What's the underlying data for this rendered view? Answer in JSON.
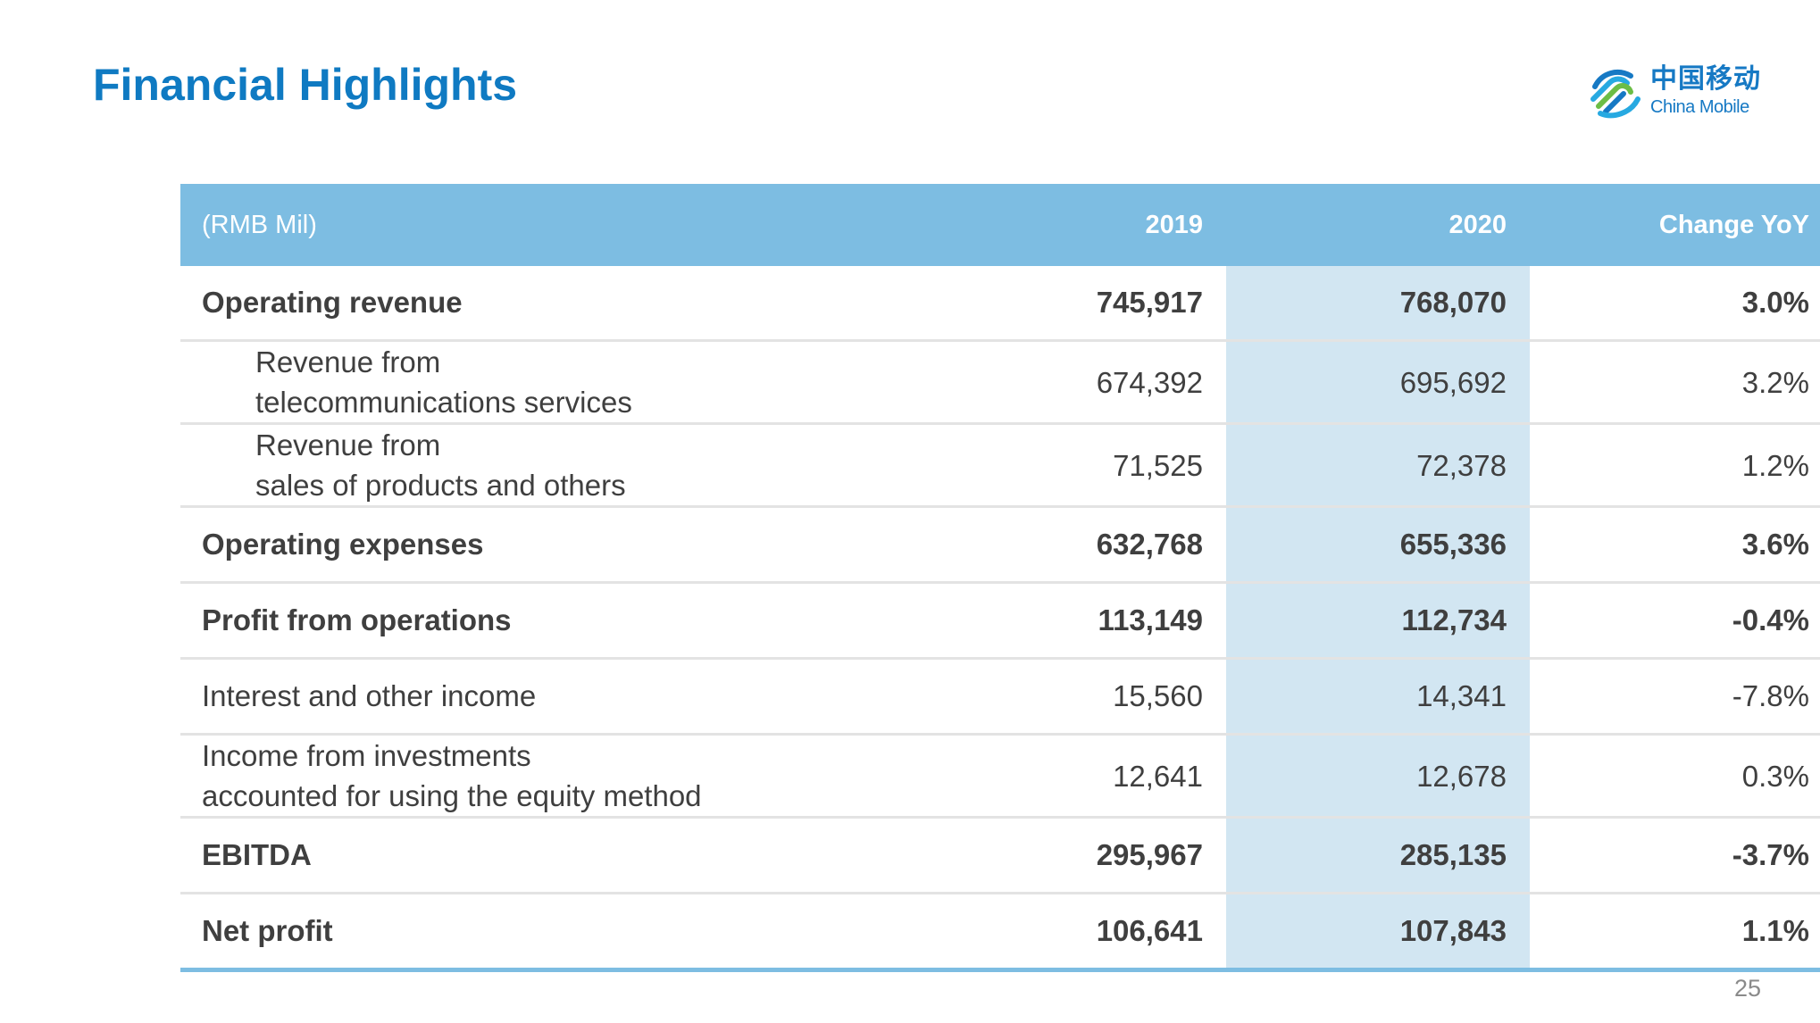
{
  "slide": {
    "title": "Financial Highlights",
    "page_number": "25"
  },
  "logo": {
    "icon": "china-mobile-logo-icon",
    "name_cn": "中国移动",
    "name_en": "China Mobile"
  },
  "table": {
    "header": {
      "unit": "(RMB Mil)",
      "col_2019": "2019",
      "col_2020": "2020",
      "col_change": "Change YoY"
    },
    "rows": [
      {
        "label": [
          "Operating revenue"
        ],
        "v2019": "745,917",
        "v2020": "768,070",
        "change": "3.0%"
      },
      {
        "label": [
          "Revenue from",
          "telecommunications services"
        ],
        "v2019": "674,392",
        "v2020": "695,692",
        "change": "3.2%"
      },
      {
        "label": [
          "Revenue from",
          "sales of products and others"
        ],
        "v2019": "71,525",
        "v2020": "72,378",
        "change": "1.2%"
      },
      {
        "label": [
          "Operating expenses"
        ],
        "v2019": "632,768",
        "v2020": "655,336",
        "change": "3.6%"
      },
      {
        "label": [
          "Profit from operations"
        ],
        "v2019": "113,149",
        "v2020": "112,734",
        "change": "-0.4%"
      },
      {
        "label": [
          "Interest and other income"
        ],
        "v2019": "15,560",
        "v2020": "14,341",
        "change": "-7.8%"
      },
      {
        "label": [
          "Income from investments",
          "accounted for using the equity method"
        ],
        "v2019": "12,641",
        "v2020": "12,678",
        "change": "0.3%"
      },
      {
        "label": [
          "EBITDA"
        ],
        "v2019": "295,967",
        "v2020": "285,135",
        "change": "-3.7%"
      },
      {
        "label": [
          "Net profit"
        ],
        "v2019": "106,641",
        "v2020": "107,843",
        "change": "1.1%"
      }
    ]
  },
  "colors": {
    "title": "#0f7ac2",
    "header_bg": "#7dbde2",
    "highlight_column": "#d2e6f2",
    "text": "#3f3f3f"
  }
}
